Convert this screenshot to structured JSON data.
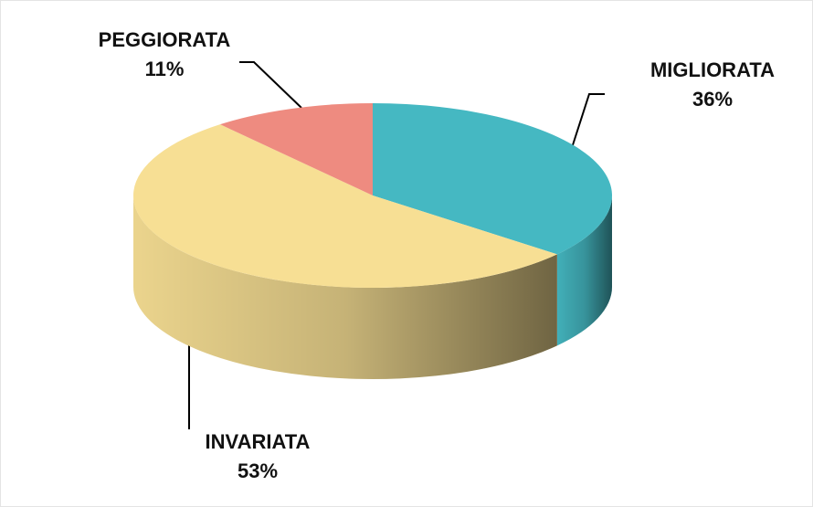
{
  "chart_data": {
    "type": "pie",
    "categories": [
      "MIGLIORATA",
      "INVARIATA",
      "PEGGIORATA"
    ],
    "values": [
      36,
      53,
      11
    ],
    "value_labels": [
      "36%",
      "53%",
      "11%"
    ],
    "colors": [
      "#45b8c2",
      "#f7df94",
      "#ee8b80"
    ]
  }
}
